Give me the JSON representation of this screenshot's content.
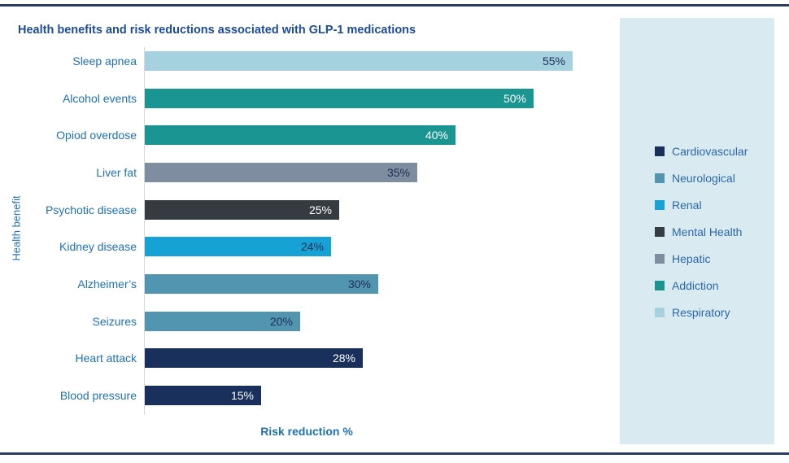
{
  "chart_data": {
    "type": "bar",
    "orientation": "horizontal",
    "title": "Health benefits and risk reductions associated with GLP-1 medications",
    "xlabel": "Risk reduction %",
    "ylabel": "Health benefit",
    "xlim": [
      0,
      59
    ],
    "grid": false,
    "legend_position": "right",
    "bars": [
      {
        "category": "Sleep apnea",
        "value": 55,
        "label": "55%",
        "group": "Respiratory",
        "color": "#a6d2e0",
        "label_style": "dark"
      },
      {
        "category": "Alcohol events",
        "value": 50,
        "label": "50%",
        "group": "Addiction",
        "color": "#1a9591",
        "label_style": "light"
      },
      {
        "category": "Opiod overdose",
        "value": 40,
        "label": "40%",
        "group": "Addiction",
        "color": "#1a9591",
        "label_style": "light"
      },
      {
        "category": "Liver fat",
        "value": 35,
        "label": "35%",
        "group": "Hepatic",
        "color": "#7f8da0",
        "label_style": "dark"
      },
      {
        "category": "Psychotic disease",
        "value": 25,
        "label": "25%",
        "group": "Mental Health",
        "color": "#363b41",
        "label_style": "light"
      },
      {
        "category": "Kidney disease",
        "value": 24,
        "label": "24%",
        "group": "Renal",
        "color": "#17a2d6",
        "label_style": "dark"
      },
      {
        "category": "Alzheimer’s",
        "value": 30,
        "label": "30%",
        "group": "Neurological",
        "color": "#5295b1",
        "label_style": "dark"
      },
      {
        "category": "Seizures",
        "value": 20,
        "label": "20%",
        "group": "Neurological",
        "color": "#5295b1",
        "label_style": "dark"
      },
      {
        "category": "Heart attack",
        "value": 28,
        "label": "28%",
        "group": "Cardiovascular",
        "color": "#18305b",
        "label_style": "light"
      },
      {
        "category": "Blood pressure",
        "value": 15,
        "label": "15%",
        "group": "Cardiovascular",
        "color": "#18305b",
        "label_style": "light"
      }
    ],
    "legend": [
      {
        "label": "Cardiovascular",
        "color": "#18305b"
      },
      {
        "label": "Neurological",
        "color": "#5295b1"
      },
      {
        "label": "Renal",
        "color": "#17a2d6"
      },
      {
        "label": "Mental Health",
        "color": "#363b41"
      },
      {
        "label": "Hepatic",
        "color": "#7f8da0"
      },
      {
        "label": "Addiction",
        "color": "#1a9591"
      },
      {
        "label": "Respiratory",
        "color": "#a6d2e0"
      }
    ]
  },
  "colors": {
    "rule": "#2b3c60",
    "legend_panel_bg": "#d9ebf1",
    "title_text": "#1b4b9e",
    "label_text": "#1d71b8",
    "value_dark": "#1b2f55",
    "value_light": "#ffffff",
    "axis_line": "#d9d9d9"
  }
}
